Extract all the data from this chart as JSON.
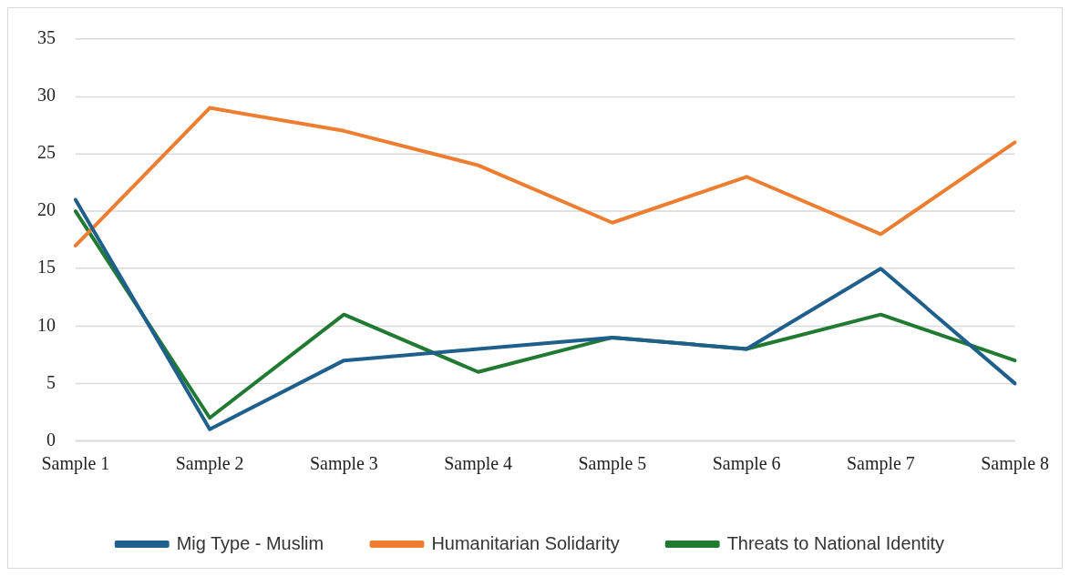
{
  "chart_data": {
    "type": "line",
    "categories": [
      "Sample 1",
      "Sample 2",
      "Sample 3",
      "Sample 4",
      "Sample 5",
      "Sample 6",
      "Sample 7",
      "Sample 8"
    ],
    "series": [
      {
        "name": "Mig Type - Muslim",
        "color": "#1f5f8b",
        "values": [
          21,
          1,
          7,
          8,
          9,
          8,
          15,
          5
        ]
      },
      {
        "name": "Humanitarian Solidarity",
        "color": "#ed7d31",
        "values": [
          17,
          29,
          27,
          24,
          19,
          23,
          18,
          26
        ]
      },
      {
        "name": "Threats to National Identity",
        "color": "#217a32",
        "values": [
          20,
          2,
          11,
          6,
          9,
          8,
          11,
          7
        ]
      }
    ],
    "ylim": [
      0,
      35
    ],
    "yticks": [
      0,
      5,
      10,
      15,
      20,
      25,
      30,
      35
    ],
    "grid": "y",
    "legend": "bottom",
    "marker": "none",
    "line_style": "solid"
  }
}
